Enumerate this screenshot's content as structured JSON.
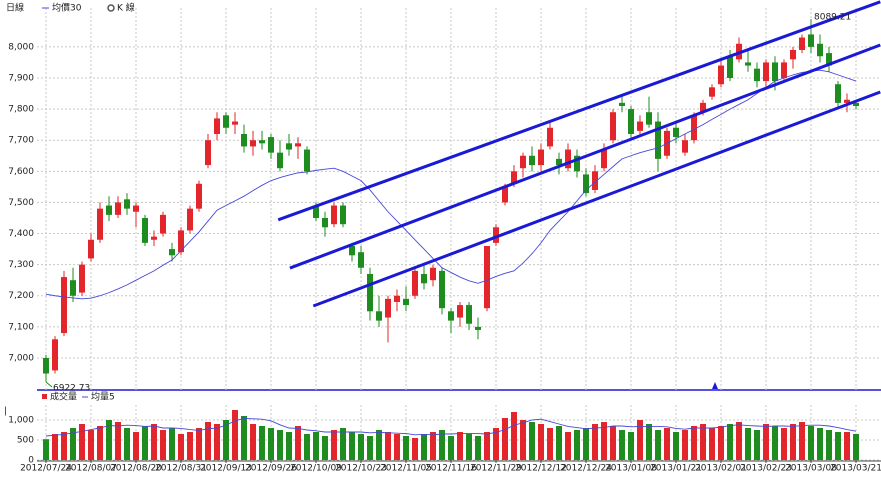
{
  "chart_data": [
    {
      "type": "candlestick",
      "title": "日線",
      "up_color": "#e3262b",
      "down_color": "#1f8c1f",
      "ylim": [
        6897,
        8125
      ],
      "yticks": [
        {
          "value": 7000,
          "label": "7,000"
        },
        {
          "value": 7100,
          "label": "7,100"
        },
        {
          "value": 7200,
          "label": "7,200"
        },
        {
          "value": 7300,
          "label": "7,300"
        },
        {
          "value": 7400,
          "label": "7,400"
        },
        {
          "value": 7500,
          "label": "7,500"
        },
        {
          "value": 7600,
          "label": "7,600"
        },
        {
          "value": 7700,
          "label": "7,700"
        },
        {
          "value": 7800,
          "label": "7,800"
        },
        {
          "value": 7900,
          "label": "7,900"
        },
        {
          "value": 8000,
          "label": "8,000"
        }
      ],
      "grid": true,
      "series": [
        {
          "name": "均價30",
          "color": "#4848d8",
          "values": [
            7205,
            7200,
            7196,
            7193,
            7190,
            7192,
            7200,
            7210,
            7222,
            7235,
            7250,
            7265,
            7280,
            7298,
            7315,
            7345,
            7375,
            7405,
            7440,
            7475,
            7490,
            7505,
            7520,
            7538,
            7555,
            7570,
            7580,
            7588,
            7595,
            7598,
            7603,
            7607,
            7610,
            7600,
            7585,
            7570,
            7540,
            7505,
            7470,
            7440,
            7410,
            7380,
            7350,
            7320,
            7290,
            7275,
            7260,
            7248,
            7240,
            7250,
            7262,
            7272,
            7280,
            7305,
            7335,
            7370,
            7410,
            7440,
            7470,
            7505,
            7540,
            7565,
            7590,
            7615,
            7640,
            7650,
            7660,
            7668,
            7675,
            7690,
            7705,
            7720,
            7735,
            7750,
            7767,
            7783,
            7800,
            7815,
            7830,
            7850,
            7870,
            7890,
            7900,
            7910,
            7918,
            7922,
            7925,
            7920,
            7910,
            7900,
            7890
          ]
        },
        {
          "name": "K 線",
          "candles": [
            [
              7000,
              7010,
              6922.73,
              6950
            ],
            [
              6960,
              7070,
              6950,
              7060
            ],
            [
              7080,
              7280,
              7070,
              7260
            ],
            [
              7250,
              7290,
              7180,
              7200
            ],
            [
              7210,
              7310,
              7200,
              7300
            ],
            [
              7320,
              7400,
              7310,
              7380
            ],
            [
              7380,
              7500,
              7370,
              7480
            ],
            [
              7490,
              7520,
              7440,
              7460
            ],
            [
              7460,
              7520,
              7450,
              7500
            ],
            [
              7510,
              7530,
              7460,
              7480
            ],
            [
              7470,
              7500,
              7420,
              7490
            ],
            [
              7450,
              7460,
              7360,
              7370
            ],
            [
              7380,
              7410,
              7360,
              7390
            ],
            [
              7400,
              7470,
              7390,
              7460
            ],
            [
              7350,
              7370,
              7310,
              7330
            ],
            [
              7340,
              7420,
              7330,
              7410
            ],
            [
              7410,
              7490,
              7400,
              7480
            ],
            [
              7480,
              7570,
              7470,
              7560
            ],
            [
              7620,
              7720,
              7610,
              7700
            ],
            [
              7720,
              7790,
              7700,
              7770
            ],
            [
              7780,
              7790,
              7720,
              7740
            ],
            [
              7750,
              7790,
              7720,
              7760
            ],
            [
              7720,
              7750,
              7660,
              7680
            ],
            [
              7680,
              7730,
              7650,
              7700
            ],
            [
              7700,
              7730,
              7670,
              7690
            ],
            [
              7710,
              7720,
              7640,
              7660
            ],
            [
              7660,
              7700,
              7600,
              7610
            ],
            [
              7690,
              7720,
              7650,
              7670
            ],
            [
              7680,
              7710,
              7640,
              7690
            ],
            [
              7670,
              7680,
              7590,
              7600
            ],
            [
              7490,
              7500,
              7440,
              7450
            ],
            [
              7450,
              7470,
              7390,
              7420
            ],
            [
              7430,
              7500,
              7420,
              7490
            ],
            [
              7490,
              7500,
              7420,
              7430
            ],
            [
              7360,
              7370,
              7310,
              7330
            ],
            [
              7340,
              7360,
              7270,
              7290
            ],
            [
              7270,
              7290,
              7120,
              7150
            ],
            [
              7150,
              7200,
              7100,
              7120
            ],
            [
              7130,
              7200,
              7050,
              7190
            ],
            [
              7180,
              7220,
              7150,
              7200
            ],
            [
              7190,
              7230,
              7150,
              7170
            ],
            [
              7200,
              7290,
              7190,
              7280
            ],
            [
              7270,
              7300,
              7220,
              7240
            ],
            [
              7250,
              7300,
              7230,
              7290
            ],
            [
              7280,
              7290,
              7140,
              7160
            ],
            [
              7150,
              7160,
              7080,
              7120
            ],
            [
              7130,
              7180,
              7100,
              7170
            ],
            [
              7170,
              7180,
              7090,
              7110
            ],
            [
              7100,
              7130,
              7060,
              7090
            ],
            [
              7160,
              7360,
              7150,
              7360
            ],
            [
              7370,
              7430,
              7360,
              7420
            ],
            [
              7500,
              7560,
              7490,
              7550
            ],
            [
              7560,
              7620,
              7550,
              7600
            ],
            [
              7610,
              7660,
              7580,
              7650
            ],
            [
              7650,
              7680,
              7600,
              7620
            ],
            [
              7620,
              7690,
              7600,
              7670
            ],
            [
              7680,
              7760,
              7670,
              7740
            ],
            [
              7640,
              7660,
              7590,
              7620
            ],
            [
              7610,
              7690,
              7600,
              7670
            ],
            [
              7650,
              7670,
              7580,
              7600
            ],
            [
              7590,
              7610,
              7520,
              7530
            ],
            [
              7540,
              7620,
              7530,
              7600
            ],
            [
              7610,
              7690,
              7600,
              7670
            ],
            [
              7700,
              7800,
              7690,
              7790
            ],
            [
              7820,
              7840,
              7790,
              7810
            ],
            [
              7800,
              7810,
              7700,
              7720
            ],
            [
              7730,
              7780,
              7710,
              7760
            ],
            [
              7790,
              7840,
              7740,
              7750
            ],
            [
              7760,
              7790,
              7600,
              7640
            ],
            [
              7650,
              7740,
              7640,
              7730
            ],
            [
              7740,
              7760,
              7690,
              7710
            ],
            [
              7660,
              7720,
              7650,
              7700
            ],
            [
              7700,
              7790,
              7690,
              7780
            ],
            [
              7790,
              7830,
              7780,
              7820
            ],
            [
              7840,
              7880,
              7830,
              7870
            ],
            [
              7880,
              7960,
              7870,
              7940
            ],
            [
              7970,
              7990,
              7890,
              7900
            ],
            [
              7960,
              8030,
              7950,
              8010
            ],
            [
              7950,
              7990,
              7920,
              7940
            ],
            [
              7930,
              7950,
              7870,
              7890
            ],
            [
              7890,
              7960,
              7870,
              7950
            ],
            [
              7950,
              7970,
              7860,
              7890
            ],
            [
              7900,
              7960,
              7890,
              7950
            ],
            [
              7960,
              8000,
              7930,
              7990
            ],
            [
              7990,
              8040,
              7980,
              8030
            ],
            [
              8040,
              8089.21,
              7980,
              8000
            ],
            [
              8010,
              8040,
              7950,
              7970
            ],
            [
              7980,
              8000,
              7920,
              7940
            ],
            [
              7880,
              7890,
              7800,
              7820
            ],
            [
              7820,
              7850,
              7790,
              7830
            ],
            [
              7820,
              7830,
              7800,
              7810
            ]
          ]
        }
      ],
      "trendlines": [
        {
          "color": "#1a1ad6",
          "x": [
            25.8,
            92.7
          ],
          "y": [
            7444,
            8145
          ]
        },
        {
          "color": "#1a1ad6",
          "x": [
            27.1,
            92.7
          ],
          "y": [
            7289,
            8006
          ]
        },
        {
          "color": "#1a1ad6",
          "x": [
            29.7,
            92.7
          ],
          "y": [
            7167,
            7855
          ]
        }
      ]
    },
    {
      "type": "bar",
      "categories": [
        "2012/07/24",
        null,
        null,
        null,
        null,
        "2012/08/07",
        null,
        null,
        null,
        null,
        "2012/08/20",
        null,
        null,
        null,
        null,
        "2012/08/31",
        null,
        null,
        null,
        null,
        "2012/09/13",
        null,
        null,
        null,
        null,
        "2012/09/26",
        null,
        null,
        null,
        null,
        "2012/10/09",
        null,
        null,
        null,
        null,
        "2012/10/23",
        null,
        null,
        null,
        null,
        "2012/11/05",
        null,
        null,
        null,
        null,
        "2012/11/16",
        null,
        null,
        null,
        null,
        "2012/11/29",
        null,
        null,
        null,
        null,
        "2012/12/12",
        null,
        null,
        null,
        null,
        "2012/12/24",
        null,
        null,
        null,
        null,
        "2013/01/08",
        null,
        null,
        null,
        null,
        "2013/01/21",
        null,
        null,
        null,
        null,
        "2013/02/01",
        null,
        null,
        null,
        null,
        "2013/02/23",
        null,
        null,
        null,
        null,
        "2013/03/08",
        null,
        null,
        null,
        null,
        "2013/03/21"
      ],
      "ylim": [
        0,
        1375
      ],
      "yticks": [
        0,
        500,
        {
          "value": 1000,
          "label": "1,000"
        }
      ],
      "series": [
        {
          "name": "成交量",
          "color": "#e3262b",
          "values": [
            520,
            650,
            700,
            800,
            900,
            750,
            850,
            1000,
            950,
            800,
            700,
            850,
            900,
            750,
            800,
            650,
            700,
            800,
            950,
            900,
            1000,
            1250,
            1100,
            900,
            850,
            800,
            750,
            700,
            850,
            650,
            700,
            600,
            750,
            800,
            700,
            650,
            600,
            750,
            700,
            650,
            600,
            550,
            650,
            700,
            750,
            600,
            700,
            650,
            600,
            700,
            800,
            1050,
            1200,
            1000,
            950,
            900,
            800,
            850,
            700,
            750,
            800,
            900,
            950,
            850,
            750,
            700,
            1000,
            900,
            750,
            800,
            700,
            750,
            850,
            900,
            800,
            850,
            900,
            950,
            800,
            750,
            900,
            850,
            800,
            900,
            950,
            850,
            800,
            750,
            700,
            700,
            650
          ]
        },
        {
          "name": "均量5",
          "color": "#4848d8",
          "values": [
            600,
            620,
            640,
            680,
            714,
            760,
            800,
            860,
            850,
            870,
            860,
            840,
            850,
            800,
            800,
            790,
            760,
            740,
            780,
            800,
            870,
            980,
            1040,
            1030,
            1020,
            980,
            880,
            800,
            790,
            750,
            730,
            700,
            700,
            700,
            700,
            700,
            680,
            690,
            680,
            670,
            660,
            630,
            640,
            630,
            650,
            650,
            660,
            660,
            660,
            650,
            690,
            760,
            870,
            930,
            1000,
            1020,
            960,
            900,
            840,
            810,
            780,
            800,
            810,
            850,
            850,
            830,
            840,
            840,
            840,
            830,
            790,
            770,
            800,
            800,
            800,
            820,
            860,
            880,
            860,
            850,
            840,
            850,
            850,
            840,
            860,
            870,
            870,
            850,
            810,
            760,
            720
          ]
        }
      ]
    }
  ]
}
